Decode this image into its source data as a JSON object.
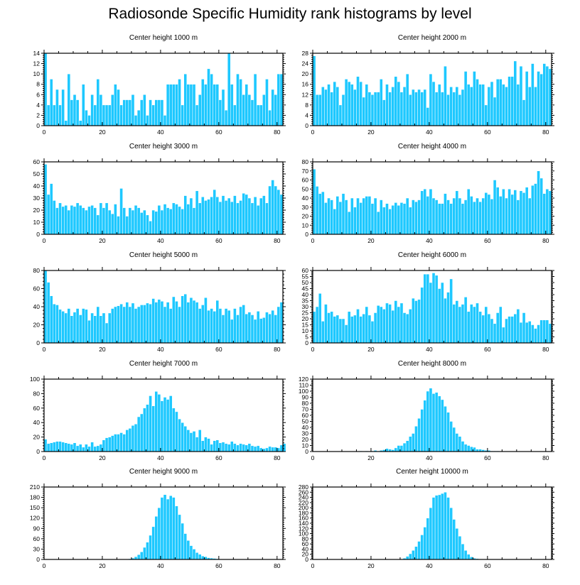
{
  "page": {
    "title": "Radiosonde Specific Humidity rank histograms by level"
  },
  "style": {
    "bar_color": "#1ec8ff",
    "bar_edge": "#ffffff",
    "axis_color": "#000000"
  },
  "chart_data": [
    {
      "type": "bar",
      "title": "Center height 1000 m",
      "xlim": [
        0,
        82
      ],
      "ylim": [
        0,
        14
      ],
      "xticks": [
        0,
        20,
        40,
        60,
        80
      ],
      "yticks": [
        0,
        2,
        4,
        6,
        8,
        10,
        12,
        14
      ],
      "x_start": 0,
      "values": [
        14,
        4,
        9,
        4,
        7,
        4,
        7,
        1,
        10,
        5,
        6,
        5,
        1,
        8,
        3,
        2,
        6,
        4,
        9,
        6,
        4,
        4,
        4,
        6,
        8,
        7,
        4,
        5,
        5,
        5,
        6,
        2,
        3,
        5,
        6,
        2,
        5,
        4,
        5,
        5,
        5,
        2,
        8,
        8,
        8,
        8,
        9,
        4,
        10,
        8,
        8,
        8,
        4,
        6,
        9,
        8,
        11,
        10,
        8,
        8,
        5,
        7,
        3,
        14,
        8,
        4,
        10,
        9,
        6,
        8,
        6,
        5,
        10,
        4,
        4,
        6,
        9,
        3,
        7,
        6,
        10,
        10
      ]
    },
    {
      "type": "bar",
      "title": "Center height 2000 m",
      "xlim": [
        0,
        82
      ],
      "ylim": [
        0,
        28
      ],
      "xticks": [
        0,
        20,
        40,
        60,
        80
      ],
      "yticks": [
        0,
        4,
        8,
        12,
        16,
        20,
        24,
        28
      ],
      "x_start": 0,
      "values": [
        27,
        12,
        12,
        15,
        14,
        16,
        13,
        17,
        15,
        8,
        12,
        18,
        17,
        16,
        14,
        19,
        17,
        11,
        16,
        13,
        12,
        13,
        13,
        18,
        10,
        16,
        13,
        15,
        19,
        17,
        13,
        15,
        20,
        12,
        14,
        13,
        14,
        13,
        14,
        7,
        20,
        17,
        13,
        16,
        13,
        23,
        12,
        15,
        13,
        15,
        12,
        14,
        21,
        16,
        15,
        21,
        18,
        16,
        16,
        8,
        15,
        17,
        11,
        18,
        18,
        16,
        15,
        19,
        19,
        25,
        16,
        23,
        10,
        21,
        15,
        24,
        15,
        21,
        20,
        24,
        23,
        22
      ]
    },
    {
      "type": "bar",
      "title": "Center height 3000 m",
      "xlim": [
        0,
        82
      ],
      "ylim": [
        0,
        60
      ],
      "xticks": [
        0,
        20,
        40,
        60,
        80
      ],
      "yticks": [
        0,
        10,
        20,
        30,
        40,
        50,
        60
      ],
      "x_start": 0,
      "values": [
        58,
        33,
        42,
        28,
        22,
        26,
        23,
        24,
        20,
        24,
        23,
        26,
        24,
        22,
        20,
        23,
        24,
        22,
        16,
        26,
        22,
        26,
        20,
        17,
        25,
        15,
        38,
        22,
        15,
        22,
        20,
        24,
        22,
        18,
        20,
        16,
        11,
        20,
        19,
        24,
        20,
        25,
        22,
        21,
        26,
        25,
        23,
        21,
        32,
        25,
        30,
        22,
        36,
        26,
        31,
        28,
        29,
        31,
        37,
        31,
        27,
        32,
        28,
        30,
        27,
        32,
        26,
        28,
        34,
        33,
        30,
        26,
        31,
        24,
        30,
        32,
        26,
        40,
        45,
        40,
        37,
        33
      ]
    },
    {
      "type": "bar",
      "title": "Center height 4000 m",
      "xlim": [
        0,
        82
      ],
      "ylim": [
        0,
        80
      ],
      "xticks": [
        0,
        20,
        40,
        60,
        80
      ],
      "yticks": [
        0,
        10,
        20,
        30,
        40,
        50,
        60,
        70,
        80
      ],
      "x_start": 0,
      "values": [
        72,
        53,
        45,
        47,
        35,
        40,
        38,
        28,
        42,
        36,
        45,
        38,
        25,
        40,
        30,
        40,
        35,
        40,
        42,
        42,
        34,
        40,
        25,
        38,
        30,
        34,
        28,
        32,
        35,
        32,
        35,
        34,
        40,
        30,
        38,
        36,
        38,
        48,
        50,
        42,
        50,
        40,
        38,
        34,
        34,
        45,
        38,
        34,
        40,
        48,
        40,
        34,
        38,
        50,
        42,
        36,
        40,
        36,
        40,
        46,
        44,
        39,
        60,
        52,
        42,
        50,
        40,
        50,
        44,
        49,
        38,
        48,
        46,
        52,
        40,
        54,
        56,
        70,
        62,
        45,
        50,
        48
      ]
    },
    {
      "type": "bar",
      "title": "Center height 5000 m",
      "xlim": [
        0,
        82
      ],
      "ylim": [
        0,
        80
      ],
      "xticks": [
        0,
        20,
        40,
        60,
        80
      ],
      "yticks": [
        0,
        20,
        40,
        60,
        80
      ],
      "x_start": 0,
      "values": [
        80,
        67,
        52,
        43,
        42,
        37,
        35,
        33,
        38,
        30,
        34,
        38,
        31,
        38,
        37,
        25,
        33,
        30,
        40,
        30,
        33,
        22,
        33,
        38,
        40,
        41,
        43,
        40,
        45,
        40,
        44,
        38,
        40,
        42,
        42,
        44,
        43,
        49,
        45,
        48,
        46,
        40,
        45,
        38,
        51,
        46,
        40,
        52,
        54,
        45,
        50,
        47,
        45,
        38,
        42,
        50,
        36,
        38,
        35,
        47,
        38,
        31,
        38,
        36,
        26,
        38,
        31,
        40,
        42,
        32,
        34,
        31,
        26,
        35,
        27,
        28,
        34,
        32,
        36,
        31,
        40,
        45
      ]
    },
    {
      "type": "bar",
      "title": "Center height 6000 m",
      "xlim": [
        0,
        82
      ],
      "ylim": [
        0,
        60
      ],
      "xticks": [
        0,
        20,
        40,
        60,
        80
      ],
      "yticks": [
        0,
        5,
        10,
        15,
        20,
        25,
        30,
        35,
        40,
        45,
        50,
        55,
        60
      ],
      "x_start": 0,
      "values": [
        26,
        30,
        41,
        18,
        32,
        25,
        26,
        22,
        23,
        20,
        20,
        15,
        26,
        22,
        23,
        28,
        22,
        24,
        30,
        23,
        18,
        25,
        31,
        30,
        28,
        33,
        32,
        27,
        35,
        30,
        33,
        25,
        24,
        28,
        37,
        35,
        36,
        46,
        57,
        57,
        50,
        58,
        56,
        45,
        50,
        37,
        42,
        53,
        32,
        35,
        30,
        32,
        38,
        26,
        32,
        30,
        33,
        26,
        23,
        30,
        24,
        20,
        16,
        25,
        30,
        13,
        20,
        22,
        22,
        24,
        28,
        17,
        25,
        17,
        18,
        15,
        12,
        15,
        19,
        19,
        19,
        16
      ]
    },
    {
      "type": "bar",
      "title": "Center height 7000 m",
      "xlim": [
        0,
        82
      ],
      "ylim": [
        0,
        100
      ],
      "xticks": [
        0,
        20,
        40,
        60,
        80
      ],
      "yticks": [
        0,
        20,
        40,
        60,
        80,
        100
      ],
      "x_start": 0,
      "values": [
        17,
        11,
        12,
        13,
        14,
        14,
        13,
        12,
        11,
        10,
        12,
        8,
        10,
        6,
        10,
        7,
        13,
        7,
        8,
        10,
        16,
        19,
        20,
        22,
        24,
        24,
        26,
        24,
        30,
        32,
        36,
        38,
        48,
        52,
        60,
        65,
        77,
        63,
        83,
        79,
        70,
        75,
        72,
        77,
        60,
        55,
        45,
        40,
        35,
        30,
        26,
        28,
        20,
        30,
        15,
        20,
        18,
        10,
        15,
        16,
        12,
        13,
        11,
        10,
        14,
        11,
        9,
        11,
        10,
        9,
        11,
        8,
        7,
        8,
        5,
        4,
        5,
        7,
        6,
        6,
        5,
        9,
        11
      ]
    },
    {
      "type": "bar",
      "title": "Center height 8000 m",
      "xlim": [
        0,
        82
      ],
      "ylim": [
        0,
        120
      ],
      "xticks": [
        0,
        20,
        40,
        60,
        80
      ],
      "yticks": [
        0,
        10,
        20,
        30,
        40,
        50,
        60,
        70,
        80,
        90,
        100,
        110,
        120
      ],
      "x_start": 0,
      "values": [
        0,
        0,
        0,
        0,
        0,
        0,
        0,
        0,
        0,
        0,
        0,
        0,
        0,
        0,
        0,
        0,
        1,
        0,
        1,
        0,
        1,
        2,
        1,
        2,
        3,
        5,
        4,
        3,
        6,
        10,
        10,
        14,
        18,
        25,
        30,
        42,
        55,
        70,
        85,
        100,
        105,
        96,
        98,
        92,
        86,
        75,
        65,
        50,
        40,
        30,
        25,
        17,
        12,
        10,
        8,
        7,
        4,
        4,
        3,
        2,
        2,
        1,
        1,
        1,
        0,
        0,
        0,
        0,
        0,
        0,
        0,
        0,
        0,
        0,
        0,
        0,
        0,
        0,
        0,
        0,
        0,
        0
      ]
    },
    {
      "type": "bar",
      "title": "Center height 9000 m",
      "xlim": [
        0,
        82
      ],
      "ylim": [
        0,
        210
      ],
      "xticks": [
        0,
        20,
        40,
        60,
        80
      ],
      "yticks": [
        0,
        30,
        60,
        90,
        120,
        150,
        180,
        210
      ],
      "x_start": 0,
      "values": [
        0,
        0,
        0,
        0,
        0,
        0,
        0,
        0,
        0,
        0,
        0,
        0,
        0,
        0,
        0,
        0,
        0,
        0,
        0,
        0,
        0,
        0,
        0,
        0,
        0,
        0,
        0,
        0,
        1,
        2,
        4,
        8,
        14,
        22,
        35,
        50,
        70,
        95,
        125,
        150,
        180,
        188,
        175,
        185,
        180,
        155,
        130,
        105,
        75,
        55,
        40,
        30,
        20,
        15,
        10,
        8,
        5,
        4,
        3,
        2,
        1,
        1,
        0,
        0,
        0,
        0,
        0,
        0,
        0,
        0,
        0,
        0,
        0,
        0,
        0,
        0,
        0,
        0,
        0,
        0,
        0,
        0
      ]
    },
    {
      "type": "bar",
      "title": "Center height 10000 m",
      "xlim": [
        0,
        82
      ],
      "ylim": [
        0,
        280
      ],
      "xticks": [
        0,
        20,
        40,
        60,
        80
      ],
      "yticks": [
        0,
        20,
        40,
        60,
        80,
        100,
        120,
        140,
        160,
        180,
        200,
        220,
        240,
        260,
        280
      ],
      "x_start": 0,
      "values": [
        0,
        0,
        0,
        0,
        0,
        0,
        0,
        0,
        0,
        0,
        0,
        0,
        0,
        0,
        0,
        0,
        0,
        0,
        0,
        0,
        0,
        0,
        0,
        0,
        0,
        0,
        0,
        0,
        0,
        0,
        0,
        5,
        12,
        22,
        35,
        50,
        70,
        95,
        125,
        160,
        200,
        240,
        248,
        250,
        255,
        260,
        240,
        200,
        155,
        120,
        90,
        60,
        35,
        20,
        10,
        5,
        3,
        2,
        1,
        1,
        0,
        0,
        0,
        0,
        0,
        0,
        0,
        0,
        0,
        0,
        0,
        0,
        0,
        0,
        0,
        0,
        0,
        0,
        0,
        0,
        0,
        0
      ]
    }
  ]
}
